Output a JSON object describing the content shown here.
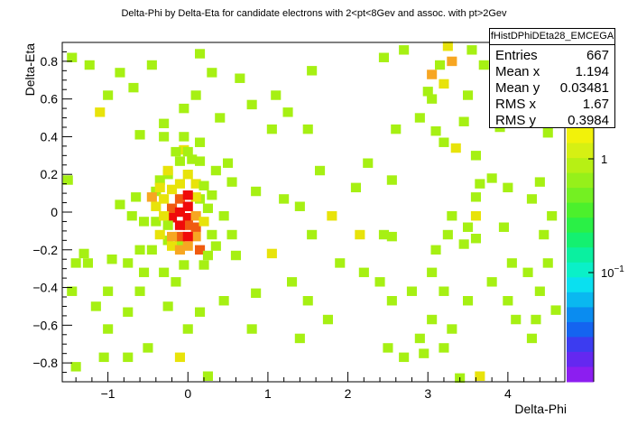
{
  "chart_data": {
    "type": "heatmap",
    "title": "Delta-Phi by Delta-Eta for candidate electrons with 2<pt<8Gev and assoc. with pt>2Gev",
    "xlabel": "Delta-Phi",
    "ylabel": "Delta-Eta",
    "xlim": [
      -1.571,
      4.712
    ],
    "ylim": [
      -0.9,
      0.9
    ],
    "x_ticks": [
      "−1",
      "0",
      "1",
      "2",
      "3",
      "4"
    ],
    "y_ticks": [
      "0.8",
      "0.6",
      "0.4",
      "0.2",
      "0",
      "−0.2",
      "−0.4",
      "−0.6",
      "−0.8"
    ],
    "color_scale": {
      "type": "log",
      "tick_labels": [
        "1",
        "10^{−1}"
      ]
    },
    "colors": {
      "c1": "#a6f013",
      "c2": "#e8e30a",
      "c3": "#f7a622",
      "c4": "#f05a10",
      "c5": "#f00a0a"
    },
    "cells": [
      [
        -1.45,
        0.82,
        1
      ],
      [
        -1.23,
        0.78,
        1
      ],
      [
        -1.0,
        0.62,
        1
      ],
      [
        -1.1,
        0.53,
        2
      ],
      [
        -0.85,
        0.74,
        1
      ],
      [
        -0.68,
        0.66,
        1
      ],
      [
        -0.45,
        0.78,
        1
      ],
      [
        -0.3,
        0.47,
        1
      ],
      [
        -0.6,
        0.41,
        1
      ],
      [
        -0.05,
        0.55,
        1
      ],
      [
        0.1,
        0.62,
        1
      ],
      [
        0.3,
        0.74,
        1
      ],
      [
        0.15,
        0.84,
        1
      ],
      [
        0.65,
        0.71,
        1
      ],
      [
        1.1,
        0.62,
        1
      ],
      [
        1.25,
        0.53,
        1
      ],
      [
        1.05,
        0.44,
        1
      ],
      [
        0.4,
        0.5,
        1
      ],
      [
        0.8,
        0.57,
        1
      ],
      [
        1.5,
        0.44,
        1
      ],
      [
        1.55,
        0.75,
        1
      ],
      [
        2.45,
        0.82,
        1
      ],
      [
        2.7,
        0.86,
        1
      ],
      [
        3.25,
        0.88,
        2
      ],
      [
        3.05,
        0.73,
        3
      ],
      [
        3.15,
        0.78,
        1
      ],
      [
        3.0,
        0.64,
        1
      ],
      [
        3.3,
        0.8,
        3
      ],
      [
        3.05,
        0.6,
        1
      ],
      [
        3.55,
        0.86,
        1
      ],
      [
        3.7,
        0.78,
        1
      ],
      [
        3.5,
        0.62,
        1
      ],
      [
        4.05,
        0.67,
        1
      ],
      [
        4.25,
        0.62,
        1
      ],
      [
        4.45,
        0.77,
        1
      ],
      [
        4.3,
        0.57,
        2
      ],
      [
        3.2,
        0.68,
        2
      ],
      [
        2.9,
        0.5,
        1
      ],
      [
        3.1,
        0.43,
        1
      ],
      [
        3.45,
        0.48,
        1
      ],
      [
        3.9,
        0.45,
        1
      ],
      [
        4.2,
        0.5,
        1
      ],
      [
        4.5,
        0.42,
        1
      ],
      [
        2.6,
        0.44,
        1
      ],
      [
        3.2,
        0.37,
        1
      ],
      [
        3.35,
        0.34,
        2
      ],
      [
        3.6,
        0.3,
        1
      ],
      [
        2.25,
        0.26,
        1
      ],
      [
        1.65,
        0.22,
        1
      ],
      [
        0.5,
        0.26,
        1
      ],
      [
        0.55,
        0.16,
        1
      ],
      [
        0.85,
        0.11,
        1
      ],
      [
        1.4,
        0.03,
        1
      ],
      [
        1.2,
        0.07,
        1
      ],
      [
        2.1,
        0.13,
        1
      ],
      [
        2.55,
        0.17,
        1
      ],
      [
        3.6,
        0.08,
        1
      ],
      [
        3.65,
        0.15,
        1
      ],
      [
        3.8,
        0.18,
        1
      ],
      [
        4.0,
        0.13,
        1
      ],
      [
        4.4,
        0.16,
        1
      ],
      [
        4.3,
        0.07,
        1
      ],
      [
        4.55,
        -0.02,
        1
      ],
      [
        4.45,
        -0.12,
        1
      ],
      [
        3.95,
        -0.08,
        1
      ],
      [
        3.5,
        -0.08,
        1
      ],
      [
        3.3,
        -0.02,
        1
      ],
      [
        3.6,
        -0.02,
        2
      ],
      [
        3.25,
        -0.12,
        1
      ],
      [
        3.45,
        -0.17,
        1
      ],
      [
        3.6,
        -0.14,
        1
      ],
      [
        3.1,
        -0.2,
        1
      ],
      [
        2.55,
        -0.13,
        1
      ],
      [
        2.15,
        -0.12,
        2
      ],
      [
        2.45,
        -0.12,
        1
      ],
      [
        1.8,
        -0.02,
        2
      ],
      [
        1.55,
        -0.12,
        1
      ],
      [
        1.05,
        -0.22,
        2
      ],
      [
        0.55,
        -0.12,
        1
      ],
      [
        0.35,
        -0.18,
        1
      ],
      [
        0.6,
        -0.23,
        1
      ],
      [
        0.2,
        -0.28,
        1
      ],
      [
        -0.1,
        -0.17,
        1
      ],
      [
        -0.25,
        -0.15,
        1
      ],
      [
        -0.35,
        -0.12,
        2
      ],
      [
        -0.4,
        -0.05,
        1
      ],
      [
        -0.55,
        -0.05,
        1
      ],
      [
        -0.7,
        -0.02,
        1
      ],
      [
        -0.65,
        0.08,
        1
      ],
      [
        -0.85,
        0.04,
        1
      ],
      [
        -1.3,
        -0.22,
        1
      ],
      [
        -1.4,
        -0.27,
        1
      ],
      [
        -1.25,
        -0.27,
        1
      ],
      [
        -0.95,
        -0.25,
        1
      ],
      [
        -0.75,
        -0.27,
        1
      ],
      [
        -0.55,
        -0.32,
        1
      ],
      [
        -0.3,
        -0.32,
        1
      ],
      [
        -0.15,
        -0.37,
        1
      ],
      [
        -1.45,
        -0.42,
        1
      ],
      [
        -1.0,
        -0.42,
        1
      ],
      [
        -0.6,
        -0.42,
        1
      ],
      [
        -0.25,
        -0.5,
        1
      ],
      [
        -1.15,
        -0.5,
        1
      ],
      [
        -0.75,
        -0.53,
        1
      ],
      [
        0.15,
        -0.53,
        1
      ],
      [
        0.45,
        -0.47,
        1
      ],
      [
        0.85,
        -0.43,
        1
      ],
      [
        1.3,
        -0.37,
        1
      ],
      [
        1.5,
        -0.47,
        1
      ],
      [
        1.9,
        -0.27,
        1
      ],
      [
        2.2,
        -0.32,
        1
      ],
      [
        2.4,
        -0.37,
        1
      ],
      [
        1.75,
        -0.57,
        1
      ],
      [
        2.55,
        -0.47,
        1
      ],
      [
        2.8,
        -0.42,
        1
      ],
      [
        3.05,
        -0.32,
        1
      ],
      [
        3.2,
        -0.42,
        1
      ],
      [
        3.5,
        -0.47,
        1
      ],
      [
        3.8,
        -0.37,
        1
      ],
      [
        4.25,
        -0.32,
        1
      ],
      [
        4.05,
        -0.27,
        1
      ],
      [
        4.5,
        -0.27,
        1
      ],
      [
        4.4,
        -0.42,
        1
      ],
      [
        4.0,
        -0.47,
        1
      ],
      [
        4.35,
        -0.57,
        1
      ],
      [
        4.6,
        -0.52,
        1
      ],
      [
        4.1,
        -0.57,
        1
      ],
      [
        4.3,
        -0.67,
        1
      ],
      [
        3.05,
        -0.57,
        1
      ],
      [
        3.3,
        -0.62,
        1
      ],
      [
        2.9,
        -0.67,
        1
      ],
      [
        2.5,
        -0.72,
        1
      ],
      [
        2.7,
        -0.77,
        1
      ],
      [
        2.95,
        -0.75,
        1
      ],
      [
        3.2,
        -0.72,
        1
      ],
      [
        0.8,
        -0.62,
        1
      ],
      [
        1.4,
        -0.67,
        1
      ],
      [
        -1.0,
        -0.62,
        1
      ],
      [
        -0.5,
        -0.72,
        1
      ],
      [
        -0.1,
        -0.77,
        2
      ],
      [
        0.25,
        -0.87,
        1
      ],
      [
        -1.4,
        -0.82,
        1
      ],
      [
        -1.05,
        -0.77,
        1
      ],
      [
        -0.75,
        -0.77,
        1
      ],
      [
        3.65,
        -0.87,
        2
      ],
      [
        3.4,
        -0.88,
        1
      ],
      [
        0.0,
        -0.62,
        1
      ],
      [
        -1.5,
        0.17,
        1
      ],
      [
        -0.35,
        0.17,
        1
      ],
      [
        -0.25,
        0.2,
        1
      ],
      [
        0.3,
        0.09,
        1
      ],
      [
        0.15,
        0.07,
        1
      ],
      [
        -0.4,
        0.11,
        1
      ],
      [
        0.35,
        0.22,
        1
      ],
      [
        -0.1,
        0.27,
        1
      ],
      [
        0.05,
        0.28,
        1
      ],
      [
        0.15,
        0.27,
        1
      ],
      [
        -0.05,
        0.33,
        2
      ],
      [
        -0.15,
        0.32,
        1
      ],
      [
        0.15,
        0.37,
        1
      ],
      [
        -0.05,
        0.4,
        1
      ],
      [
        -0.3,
        0.4,
        1
      ],
      [
        0.0,
        0.32,
        1
      ],
      [
        -0.25,
        0.22,
        2
      ],
      [
        -0.35,
        0.13,
        2
      ],
      [
        -0.45,
        0.08,
        3
      ],
      [
        -0.4,
        0.03,
        2
      ],
      [
        -0.3,
        0.07,
        2
      ],
      [
        -0.2,
        0.12,
        2
      ],
      [
        -0.1,
        0.15,
        2
      ],
      [
        0.0,
        0.2,
        2
      ],
      [
        0.1,
        0.15,
        2
      ],
      [
        0.1,
        0.08,
        2
      ],
      [
        -0.2,
        0.02,
        4
      ],
      [
        -0.1,
        0.07,
        4
      ],
      [
        0.0,
        0.09,
        5
      ],
      [
        0.0,
        0.03,
        5
      ],
      [
        -0.1,
        0.0,
        5
      ],
      [
        -0.2,
        -0.03,
        5
      ],
      [
        0.0,
        -0.03,
        5
      ],
      [
        0.1,
        -0.02,
        3
      ],
      [
        0.0,
        -0.07,
        4
      ],
      [
        -0.1,
        -0.07,
        5
      ],
      [
        0.1,
        -0.08,
        4
      ],
      [
        0.2,
        -0.05,
        2
      ],
      [
        0.25,
        0.02,
        1
      ],
      [
        0.1,
        -0.13,
        3
      ],
      [
        -0.1,
        -0.13,
        4
      ],
      [
        -0.2,
        -0.13,
        3
      ],
      [
        0.0,
        -0.13,
        5
      ],
      [
        -0.2,
        -0.18,
        2
      ],
      [
        0.0,
        -0.18,
        3
      ],
      [
        0.15,
        -0.2,
        4
      ],
      [
        -0.1,
        -0.2,
        3
      ],
      [
        -0.3,
        -0.02,
        2
      ],
      [
        -0.25,
        -0.07,
        1
      ],
      [
        0.3,
        -0.12,
        1
      ],
      [
        0.2,
        0.14,
        1
      ],
      [
        0.25,
        -0.23,
        1
      ],
      [
        -0.05,
        -0.28,
        1
      ],
      [
        -0.45,
        -0.2,
        1
      ],
      [
        -0.6,
        -0.2,
        1
      ],
      [
        0.45,
        -0.02,
        1
      ]
    ]
  },
  "stats_box": {
    "name": "fHistDPhiDEta28_EMCEGA",
    "entries_label": "Entries",
    "entries": "667",
    "meanx_label": "Mean x",
    "meanx": "1.194",
    "meany_label": "Mean y",
    "meany": "0.03481",
    "rmsx_label": "RMS x",
    "rmsx": "1.67",
    "rmsy_label": "RMS y",
    "rmsy": "0.3984"
  }
}
